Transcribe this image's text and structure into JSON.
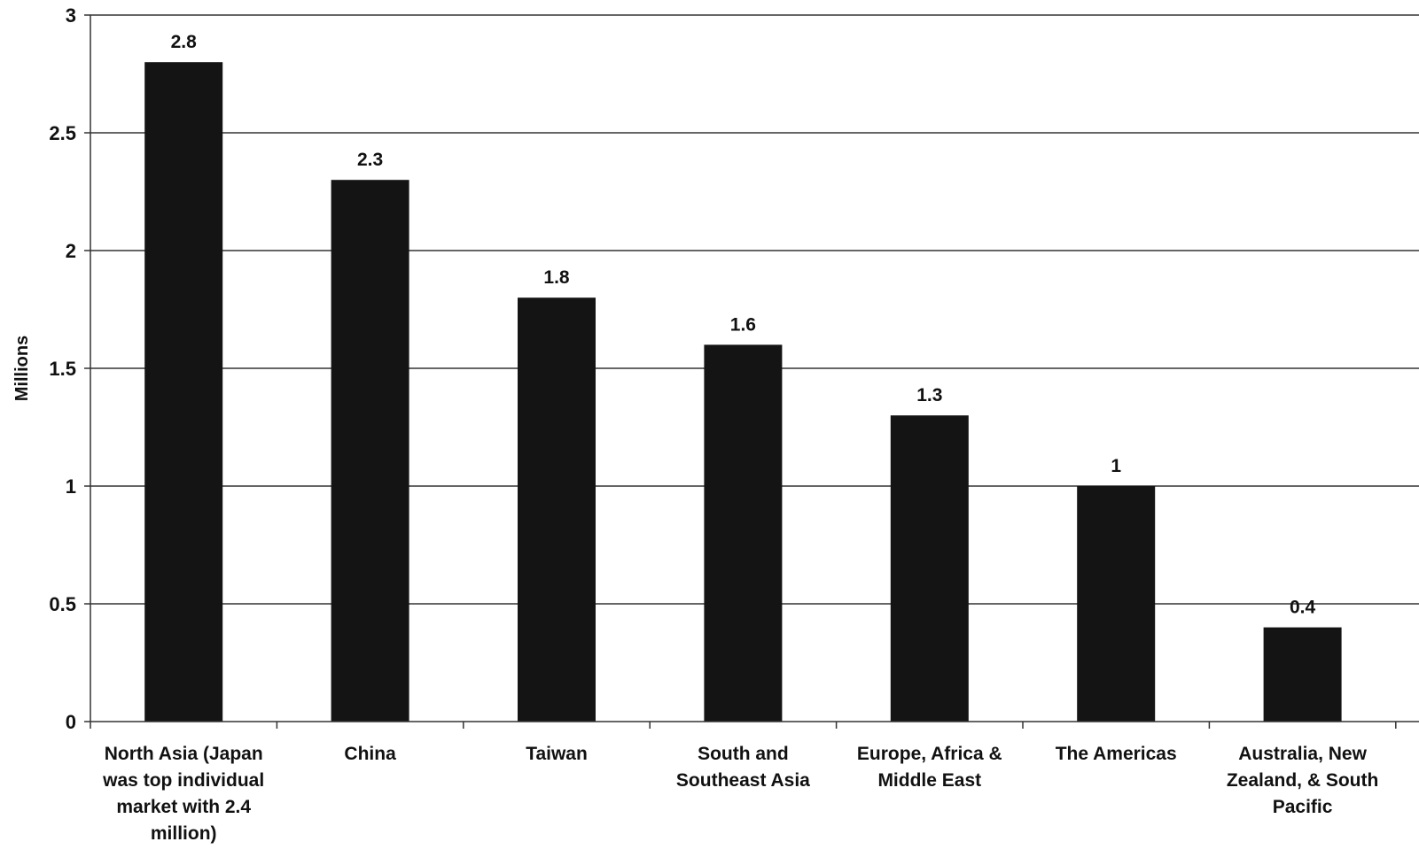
{
  "chart_data": {
    "type": "bar",
    "ylabel": "Millions",
    "xlabel": "",
    "title": "",
    "ylim": [
      0,
      3
    ],
    "yticks": [
      0,
      0.5,
      1,
      1.5,
      2,
      2.5,
      3
    ],
    "ytick_labels": [
      "0",
      "0.5",
      "1",
      "1.5",
      "2",
      "2.5",
      "3"
    ],
    "grid": true,
    "legend": "none",
    "bar_color": "#141414",
    "categories": [
      "North Asia (Japan was top individual market with 2.4 million)",
      "China",
      "Taiwan",
      "South and Southeast Asia",
      "Europe, Africa & Middle East",
      "The Americas",
      "Australia, New Zealand, & South Pacific"
    ],
    "category_lines": [
      [
        "North Asia (Japan",
        "was top individual",
        "market with 2.4",
        "million)"
      ],
      [
        "China"
      ],
      [
        "Taiwan"
      ],
      [
        "South and",
        "Southeast Asia"
      ],
      [
        "Europe, Africa &",
        "Middle East"
      ],
      [
        "The Americas"
      ],
      [
        "Australia, New",
        "Zealand, & South",
        "Pacific"
      ]
    ],
    "values": [
      2.8,
      2.3,
      1.8,
      1.6,
      1.3,
      1,
      0.4
    ],
    "value_labels": [
      "2.8",
      "2.3",
      "1.8",
      "1.6",
      "1.3",
      "1",
      "0.4"
    ]
  }
}
